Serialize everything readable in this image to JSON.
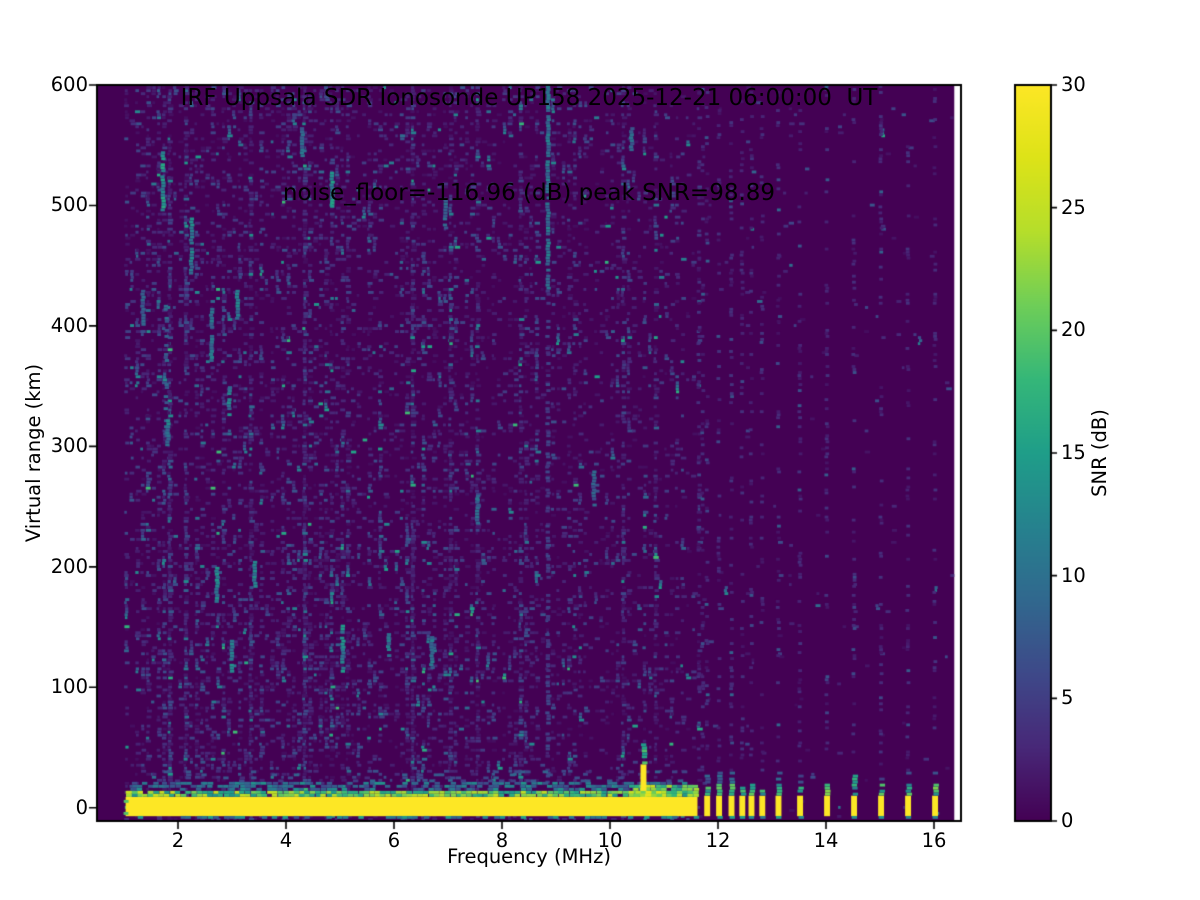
{
  "title": {
    "line1": "IRF Uppsala SDR Ionosonde UP158 2025-12-21 06:00:00  UT",
    "line2": "noise_floor=-116.96 (dB) peak SNR=98.89"
  },
  "x_axis": {
    "label": "Frequency (MHz)",
    "ticks": [
      2,
      4,
      6,
      8,
      10,
      12,
      14,
      16
    ],
    "lim": [
      0.5,
      16.5
    ]
  },
  "y_axis": {
    "label": "Virtual range (km)",
    "ticks": [
      0,
      100,
      200,
      300,
      400,
      500,
      600
    ],
    "lim": [
      -11,
      600
    ]
  },
  "colorbar": {
    "label": "SNR (dB)",
    "ticks": [
      0,
      5,
      10,
      15,
      20,
      25,
      30
    ],
    "lim": [
      0,
      30
    ]
  },
  "chart_data": {
    "type": "heatmap",
    "title": "IRF Uppsala SDR Ionosonde UP158 2025-12-21 06:00:00  UT",
    "subtitle": "noise_floor=-116.96 (dB) peak SNR=98.89",
    "xlabel": "Frequency (MHz)",
    "ylabel": "Virtual range (km)",
    "value_label": "SNR (dB)",
    "value_range_db": [
      0,
      30
    ],
    "freq_lim_mhz": [
      0.5,
      16.5
    ],
    "range_lim_km": [
      -11,
      600
    ],
    "data_freq_span_mhz": [
      1.0,
      16.38
    ],
    "colormap": "viridis",
    "colormap_stops": [
      [
        0.0,
        "#440154"
      ],
      [
        0.1,
        "#482878"
      ],
      [
        0.2,
        "#3e4989"
      ],
      [
        0.3,
        "#31688e"
      ],
      [
        0.4,
        "#26828e"
      ],
      [
        0.5,
        "#1f9e89"
      ],
      [
        0.6,
        "#35b779"
      ],
      [
        0.7,
        "#6ece58"
      ],
      [
        0.8,
        "#b5de2b"
      ],
      [
        0.9,
        "#dde318"
      ],
      [
        1.0,
        "#fde725"
      ]
    ],
    "ground_band": {
      "freq_mhz": [
        1.03,
        11.62
      ],
      "range_km": [
        -7,
        9
      ],
      "snr_db": 30,
      "fringe_km": [
        9,
        30
      ],
      "underline_km": -9.3
    },
    "sounding_stripes_mhz": [
      11.8,
      12.02,
      12.25,
      12.45,
      12.62,
      12.82,
      13.12,
      13.52,
      14.02,
      14.52,
      15.02,
      15.52,
      16.02
    ],
    "stripe_width_mhz": 0.11,
    "stripe_top_km": 10,
    "tall_stripe_mhz": 14.52,
    "spike": {
      "freq_mhz": 10.62,
      "width_mhz": 0.11,
      "top_km": 36,
      "snr_db": 30
    },
    "rfi_streaks": [
      {
        "f": 1.35,
        "km": [
          400,
          430
        ],
        "snr": 8
      },
      {
        "f": 1.72,
        "km": [
          495,
          545
        ],
        "snr": 13
      },
      {
        "f": 1.78,
        "km": [
          300,
          425
        ],
        "snr": 8,
        "dashed": true
      },
      {
        "f": 1.81,
        "km": [
          300,
          322
        ],
        "snr": 11
      },
      {
        "f": 2.25,
        "km": [
          440,
          490
        ],
        "snr": 11
      },
      {
        "f": 2.62,
        "km": [
          370,
          415
        ],
        "snr": 10
      },
      {
        "f": 2.72,
        "km": [
          170,
          200
        ],
        "snr": 12
      },
      {
        "f": 2.95,
        "km": [
          325,
          350
        ],
        "snr": 11
      },
      {
        "f": 3.0,
        "km": [
          112,
          138
        ],
        "snr": 12
      },
      {
        "f": 3.1,
        "km": [
          405,
          430
        ],
        "snr": 11
      },
      {
        "f": 3.42,
        "km": [
          180,
          205
        ],
        "snr": 11
      },
      {
        "f": 4.3,
        "km": [
          540,
          565
        ],
        "snr": 9
      },
      {
        "f": 4.85,
        "km": [
          498,
          528
        ],
        "snr": 13
      },
      {
        "f": 5.05,
        "km": [
          112,
          150
        ],
        "snr": 12
      },
      {
        "f": 5.9,
        "km": [
          125,
          145
        ],
        "snr": 10
      },
      {
        "f": 6.7,
        "km": [
          115,
          142
        ],
        "snr": 10
      },
      {
        "f": 6.95,
        "km": [
          480,
          505
        ],
        "snr": 9
      },
      {
        "f": 7.55,
        "km": [
          235,
          258
        ],
        "snr": 9
      },
      {
        "f": 8.85,
        "km": [
          430,
          600
        ],
        "snr": 10
      },
      {
        "f": 8.85,
        "km": [
          0,
          430
        ],
        "snr": 5,
        "dashed": true
      },
      {
        "f": 9.7,
        "km": [
          250,
          280
        ],
        "snr": 8
      },
      {
        "f": 10.4,
        "km": [
          545,
          565
        ],
        "snr": 9
      }
    ],
    "noise": {
      "seed": 20251221,
      "cell_mhz": 0.1,
      "cell_km": 2.5,
      "density_by_freq": [
        [
          6,
          0.33
        ],
        [
          9.5,
          0.27
        ],
        [
          11.62,
          0.17
        ],
        [
          16.38,
          0.012
        ]
      ],
      "stripe_column_density": 0.21,
      "weak_columns_mhz": [
        11.65,
        11.72
      ]
    }
  },
  "colors": {
    "background": "#ffffff",
    "frame": "#000000",
    "cmap_low": "#440154",
    "cmap_high": "#fde725"
  }
}
